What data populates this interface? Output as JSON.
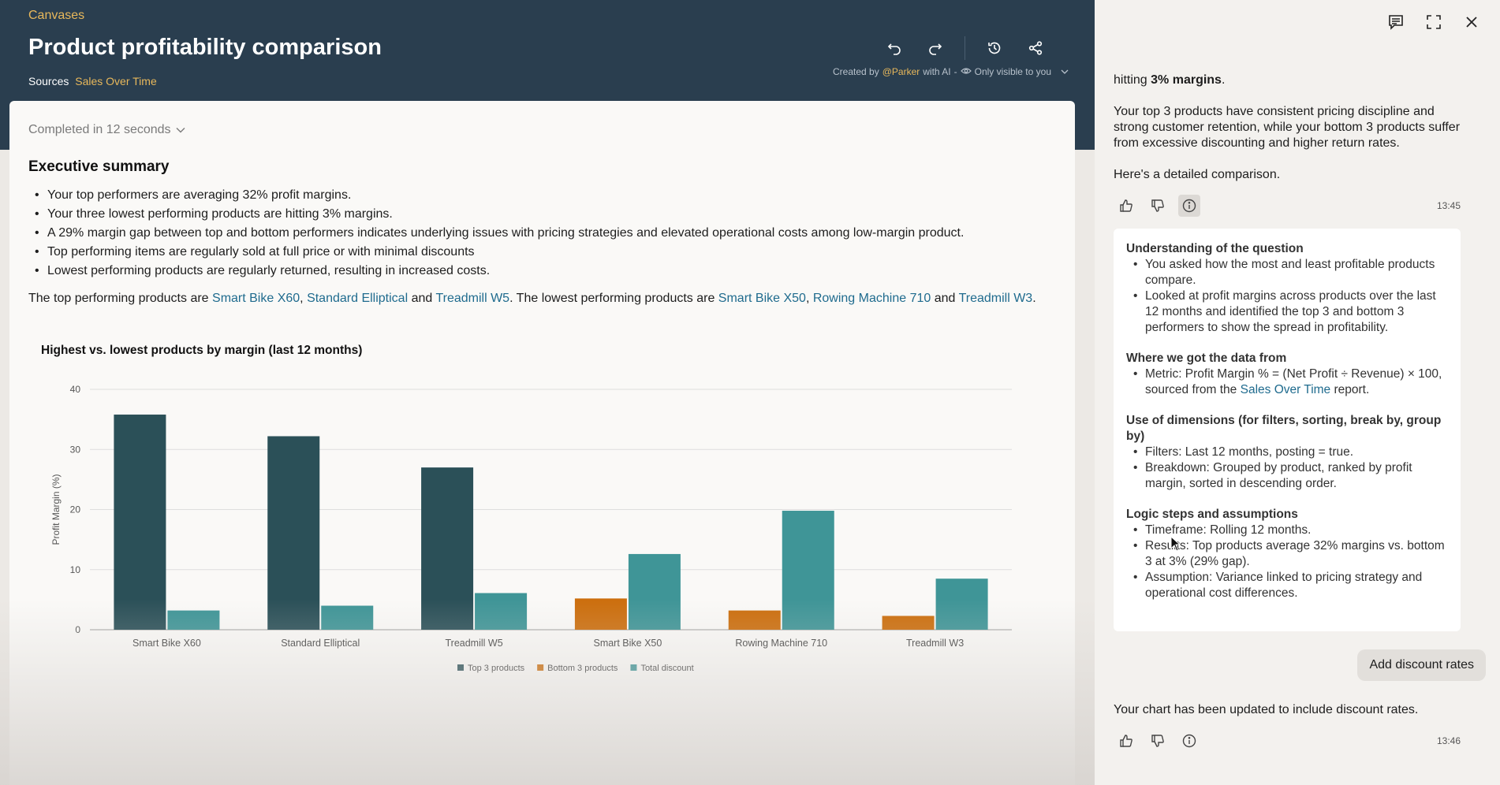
{
  "header": {
    "breadcrumb": "Canvases",
    "title": "Product profitability comparison",
    "sources_label": "Sources",
    "sources_link": "Sales Over Time",
    "created_by_prefix": "Created by",
    "created_by_user": "@Parker",
    "created_by_suffix": "with AI",
    "separator": "-",
    "visibility": "Only visible to you",
    "icons": [
      "undo-icon",
      "redo-icon",
      "history-icon",
      "share-icon"
    ]
  },
  "main": {
    "status": "Completed in 12 seconds",
    "section_title": "Executive summary",
    "bullets": [
      "Your top performers are averaging 32% profit margins.",
      "Your three lowest performing products are hitting 3% margins.",
      "A 29% margin gap between top and bottom performers indicates underlying issues with pricing strategies and elevated operational costs among low-margin product.",
      "Top performing items are regularly sold at full price or with minimal discounts",
      "Lowest performing products are regularly returned, resulting in increased costs."
    ],
    "para": {
      "t1": "The top performing products are ",
      "l1": "Smart Bike X60",
      "t2": ", ",
      "l2": "Standard Elliptical",
      "t3": " and ",
      "l3": "Treadmill W5",
      "t4": ". The lowest performing products are ",
      "l4": "Smart Bike X50",
      "t5": ", ",
      "l5": "Rowing Machine 710",
      "t6": " and ",
      "l6": "Treadmill W3",
      "t7": "."
    }
  },
  "chart_data": {
    "type": "bar",
    "title": "Highest vs. lowest products by margin (last 12 months)",
    "ylabel": "Profit Margin (%)",
    "xlabel": "",
    "ylim": [
      0,
      40
    ],
    "yticks": [
      0,
      10,
      20,
      30,
      40
    ],
    "grid": true,
    "legend_position": "bottom",
    "categories": [
      "Smart Bike X60",
      "Standard Elliptical",
      "Treadmill W5",
      "Smart Bike X50",
      "Rowing Machine 710",
      "Treadmill W3"
    ],
    "series": [
      {
        "name": "Top 3 products",
        "color": "#2b5058",
        "values": [
          35.8,
          32.2,
          27.0,
          null,
          null,
          null
        ]
      },
      {
        "name": "Bottom 3 products",
        "color": "#cc6e0d",
        "values": [
          null,
          null,
          null,
          5.2,
          3.2,
          2.3
        ]
      },
      {
        "name": "Total discount",
        "color": "#3f9597",
        "values": [
          3.2,
          4.0,
          6.1,
          12.6,
          19.8,
          8.5
        ]
      }
    ]
  },
  "panel": {
    "icons": [
      "feedback-icon",
      "expand-icon",
      "close-icon"
    ],
    "msg_top_prefix": "hitting ",
    "msg_top_bold": "3% margins",
    "msg_top_suffix": ".",
    "msg1": "Your top 3 products have consistent pricing discipline and strong customer retention, while your bottom 3 products suffer from excessive discounting and higher return rates.",
    "msg2": "Here's a detailed comparison.",
    "time1": "13:45",
    "info": {
      "s1_title": "Understanding of the question",
      "s1_items": [
        "You asked how the most and least profitable products compare.",
        "Looked at profit margins across products over the last 12 months and identified the top 3 and bottom 3 performers to show the spread in profitability."
      ],
      "s2_title": "Where we got the data from",
      "s2_item_prefix": "Metric: Profit Margin % = (Net Profit ÷ Revenue) × 100, sourced from the ",
      "s2_item_link": "Sales Over Time",
      "s2_item_suffix": " report.",
      "s3_title": "Use of dimensions (for filters, sorting, break by, group by)",
      "s3_items": [
        "Filters: Last 12 months, posting = true.",
        "Breakdown: Grouped by product, ranked by profit margin, sorted in descending order."
      ],
      "s4_title": "Logic steps and assumptions",
      "s4_items": [
        "Timeframe: Rolling 12 months.",
        "Results: Top products average 32% margins vs. bottom 3 at 3% (29% gap).",
        "Assumption: Variance linked to pricing strategy and operational cost differences."
      ]
    },
    "user_msg": "Add discount rates",
    "msg3": "Your chart has been updated to include discount rates.",
    "time2": "13:46"
  }
}
